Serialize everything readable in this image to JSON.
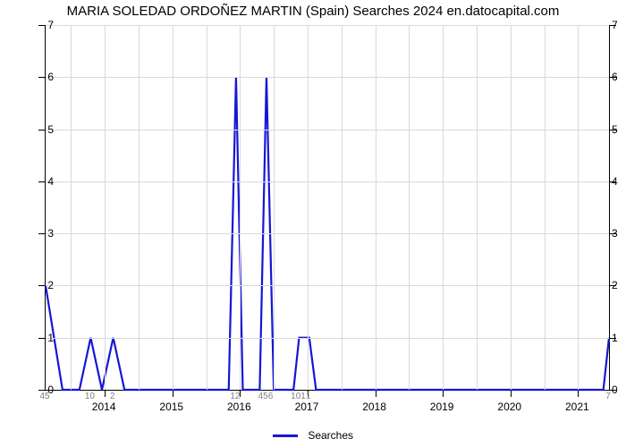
{
  "chart": {
    "type": "line",
    "title": "MARIA SOLEDAD ORDOÑEZ MARTIN (Spain) Searches 2024 en.datocapital.com",
    "title_fontsize": 15,
    "background_color": "#ffffff",
    "grid_color": "#d9d9d9",
    "axis_color": "#000000",
    "line_color": "#1616d6",
    "line_width": 2.2,
    "y": {
      "min": 0,
      "max": 7,
      "ticks": [
        0,
        1,
        2,
        3,
        4,
        5,
        6,
        7
      ],
      "label_fontsize": 12
    },
    "x": {
      "min": 0,
      "max": 100,
      "major_ticks": [
        {
          "pos": 10.5,
          "label": "2014"
        },
        {
          "pos": 22.5,
          "label": "2015"
        },
        {
          "pos": 34.5,
          "label": "2016"
        },
        {
          "pos": 46.5,
          "label": "2017"
        },
        {
          "pos": 58.5,
          "label": "2018"
        },
        {
          "pos": 70.5,
          "label": "2019"
        },
        {
          "pos": 82.5,
          "label": "2020"
        },
        {
          "pos": 94.5,
          "label": "2021"
        }
      ],
      "grid_positions": [
        4.5,
        10.5,
        16.5,
        22.5,
        28.5,
        34.5,
        40.5,
        46.5,
        52.5,
        58.5,
        64.5,
        70.5,
        76.5,
        82.5,
        88.5,
        94.5
      ]
    },
    "series": {
      "name": "Searches",
      "points": [
        {
          "x": 0,
          "y": 2,
          "label": "45"
        },
        {
          "x": 3,
          "y": 0
        },
        {
          "x": 6,
          "y": 0
        },
        {
          "x": 8,
          "y": 1,
          "label": "10"
        },
        {
          "x": 10,
          "y": 0
        },
        {
          "x": 12,
          "y": 1,
          "label": "2"
        },
        {
          "x": 14,
          "y": 0
        },
        {
          "x": 32.5,
          "y": 0
        },
        {
          "x": 33.8,
          "y": 6,
          "label": "12"
        },
        {
          "x": 35,
          "y": 0
        },
        {
          "x": 38,
          "y": 0
        },
        {
          "x": 39.2,
          "y": 6,
          "label": "456"
        },
        {
          "x": 40.5,
          "y": 0
        },
        {
          "x": 44,
          "y": 0
        },
        {
          "x": 45,
          "y": 1,
          "label": "101"
        },
        {
          "x": 46.8,
          "y": 1,
          "label": "1"
        },
        {
          "x": 48,
          "y": 0
        },
        {
          "x": 99,
          "y": 0
        },
        {
          "x": 100,
          "y": 1,
          "label": "7"
        }
      ]
    },
    "legend": {
      "label": "Searches"
    }
  }
}
